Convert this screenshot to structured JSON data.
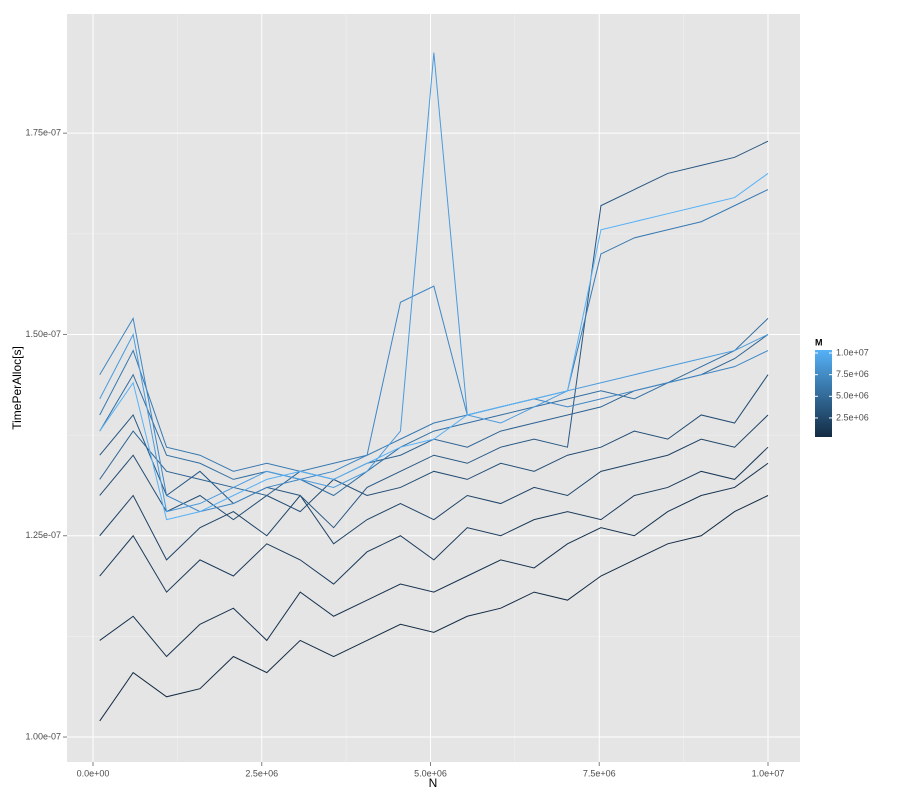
{
  "chart_data": {
    "type": "line",
    "x_label": "N",
    "y_label": "TimePerAlloc[s]",
    "x": [
      100000,
      595000,
      1090000,
      1585000,
      2080000,
      2575000,
      3070000,
      3565000,
      4060000,
      4555000,
      5050000,
      5545000,
      6040000,
      6535000,
      7030000,
      7525000,
      8020000,
      8515000,
      9010000,
      9505000,
      10000000
    ],
    "xlim": [
      -385000,
      10474000
    ],
    "xticks": [
      {
        "value": 0,
        "label": "0.0e+00"
      },
      {
        "value": 2500000,
        "label": "2.5e+06"
      },
      {
        "value": 5000000,
        "label": "5.0e+06"
      },
      {
        "value": 7500000,
        "label": "7.5e+06"
      },
      {
        "value": 10000000,
        "label": "1.0e+07"
      }
    ],
    "ylim": [
      9.69e-08,
      1.898e-07
    ],
    "yticks": [
      {
        "value": 1e-07,
        "label": "1.00e-07"
      },
      {
        "value": 1.25e-07,
        "label": "1.25e-07"
      },
      {
        "value": 1.5e-07,
        "label": "1.50e-07"
      },
      {
        "value": 1.75e-07,
        "label": "1.75e-07"
      }
    ],
    "grid": true,
    "colorbar": {
      "title": "M",
      "lim": [
        300000,
        10350000
      ],
      "low": "#132B43",
      "high": "#56B1F7",
      "ticks": [
        {
          "value": 2500000,
          "label": "2.5e+06"
        },
        {
          "value": 5000000,
          "label": "5.0e+06"
        },
        {
          "value": 7500000,
          "label": "7.5e+06"
        },
        {
          "value": 10000000,
          "label": "1.0e+07"
        }
      ]
    },
    "series": [
      {
        "color": "#132B43",
        "values": [
          1.02e-07,
          1.08e-07,
          1.05e-07,
          1.06e-07,
          1.1e-07,
          1.08e-07,
          1.12e-07,
          1.1e-07,
          1.12e-07,
          1.14e-07,
          1.13e-07,
          1.15e-07,
          1.16e-07,
          1.18e-07,
          1.17e-07,
          1.2e-07,
          1.22e-07,
          1.24e-07,
          1.25e-07,
          1.28e-07,
          1.3e-07
        ]
      },
      {
        "color": "#16324E",
        "values": [
          1.12e-07,
          1.15e-07,
          1.1e-07,
          1.14e-07,
          1.16e-07,
          1.12e-07,
          1.18e-07,
          1.15e-07,
          1.17e-07,
          1.19e-07,
          1.18e-07,
          1.2e-07,
          1.22e-07,
          1.21e-07,
          1.24e-07,
          1.26e-07,
          1.25e-07,
          1.28e-07,
          1.3e-07,
          1.31e-07,
          1.34e-07
        ]
      },
      {
        "color": "#1A3A5A",
        "values": [
          1.2e-07,
          1.25e-07,
          1.18e-07,
          1.22e-07,
          1.2e-07,
          1.24e-07,
          1.22e-07,
          1.19e-07,
          1.23e-07,
          1.25e-07,
          1.22e-07,
          1.26e-07,
          1.25e-07,
          1.27e-07,
          1.28e-07,
          1.27e-07,
          1.3e-07,
          1.31e-07,
          1.33e-07,
          1.32e-07,
          1.36e-07
        ]
      },
      {
        "color": "#1E4366",
        "values": [
          1.25e-07,
          1.3e-07,
          1.22e-07,
          1.26e-07,
          1.28e-07,
          1.25e-07,
          1.3e-07,
          1.24e-07,
          1.27e-07,
          1.29e-07,
          1.27e-07,
          1.3e-07,
          1.29e-07,
          1.31e-07,
          1.3e-07,
          1.33e-07,
          1.34e-07,
          1.35e-07,
          1.37e-07,
          1.36e-07,
          1.4e-07
        ]
      },
      {
        "color": "#234D74",
        "values": [
          1.3e-07,
          1.35e-07,
          1.28e-07,
          1.3e-07,
          1.27e-07,
          1.3e-07,
          1.28e-07,
          1.32e-07,
          1.3e-07,
          1.31e-07,
          1.33e-07,
          1.32e-07,
          1.34e-07,
          1.33e-07,
          1.35e-07,
          1.36e-07,
          1.38e-07,
          1.37e-07,
          1.4e-07,
          1.39e-07,
          1.45e-07
        ]
      },
      {
        "color": "#285783",
        "values": [
          1.35e-07,
          1.4e-07,
          1.3e-07,
          1.33e-07,
          1.29e-07,
          1.31e-07,
          1.3e-07,
          1.26e-07,
          1.31e-07,
          1.33e-07,
          1.35e-07,
          1.34e-07,
          1.36e-07,
          1.37e-07,
          1.36e-07,
          1.66e-07,
          1.68e-07,
          1.7e-07,
          1.71e-07,
          1.72e-07,
          1.74e-07
        ]
      },
      {
        "color": "#2D6292",
        "values": [
          1.32e-07,
          1.38e-07,
          1.33e-07,
          1.32e-07,
          1.31e-07,
          1.3e-07,
          1.33e-07,
          1.32e-07,
          1.34e-07,
          1.35e-07,
          1.37e-07,
          1.36e-07,
          1.38e-07,
          1.39e-07,
          1.4e-07,
          1.41e-07,
          1.43e-07,
          1.44e-07,
          1.45e-07,
          1.47e-07,
          1.5e-07
        ]
      },
      {
        "color": "#326EA2",
        "values": [
          1.38e-07,
          1.45e-07,
          1.35e-07,
          1.34e-07,
          1.32e-07,
          1.33e-07,
          1.32e-07,
          1.3e-07,
          1.33e-07,
          1.36e-07,
          1.38e-07,
          1.39e-07,
          1.4e-07,
          1.41e-07,
          1.42e-07,
          1.43e-07,
          1.42e-07,
          1.44e-07,
          1.46e-07,
          1.48e-07,
          1.52e-07
        ]
      },
      {
        "color": "#3879B2",
        "values": [
          1.4e-07,
          1.48e-07,
          1.36e-07,
          1.35e-07,
          1.33e-07,
          1.34e-07,
          1.33e-07,
          1.34e-07,
          1.35e-07,
          1.37e-07,
          1.39e-07,
          1.4e-07,
          1.41e-07,
          1.42e-07,
          1.43e-07,
          1.6e-07,
          1.62e-07,
          1.63e-07,
          1.64e-07,
          1.66e-07,
          1.68e-07
        ]
      },
      {
        "color": "#3F86C4",
        "values": [
          1.45e-07,
          1.52e-07,
          1.3e-07,
          1.28e-07,
          1.29e-07,
          1.31e-07,
          1.32e-07,
          1.33e-07,
          1.35e-07,
          1.54e-07,
          1.56e-07,
          1.4e-07,
          1.41e-07,
          1.42e-07,
          1.41e-07,
          1.42e-07,
          1.43e-07,
          1.44e-07,
          1.45e-07,
          1.46e-07,
          1.48e-07
        ]
      },
      {
        "color": "#4A9ADD",
        "values": [
          1.42e-07,
          1.5e-07,
          1.28e-07,
          1.29e-07,
          1.31e-07,
          1.33e-07,
          1.32e-07,
          1.31e-07,
          1.33e-07,
          1.38e-07,
          1.85e-07,
          1.4e-07,
          1.39e-07,
          1.41e-07,
          1.43e-07,
          1.44e-07,
          1.45e-07,
          1.46e-07,
          1.47e-07,
          1.48e-07,
          1.5e-07
        ]
      },
      {
        "color": "#56B1F7",
        "values": [
          1.38e-07,
          1.44e-07,
          1.27e-07,
          1.28e-07,
          1.3e-07,
          1.32e-07,
          1.33e-07,
          1.32e-07,
          1.34e-07,
          1.36e-07,
          1.37e-07,
          1.4e-07,
          1.41e-07,
          1.42e-07,
          1.43e-07,
          1.63e-07,
          1.64e-07,
          1.65e-07,
          1.66e-07,
          1.67e-07,
          1.7e-07
        ]
      }
    ]
  }
}
